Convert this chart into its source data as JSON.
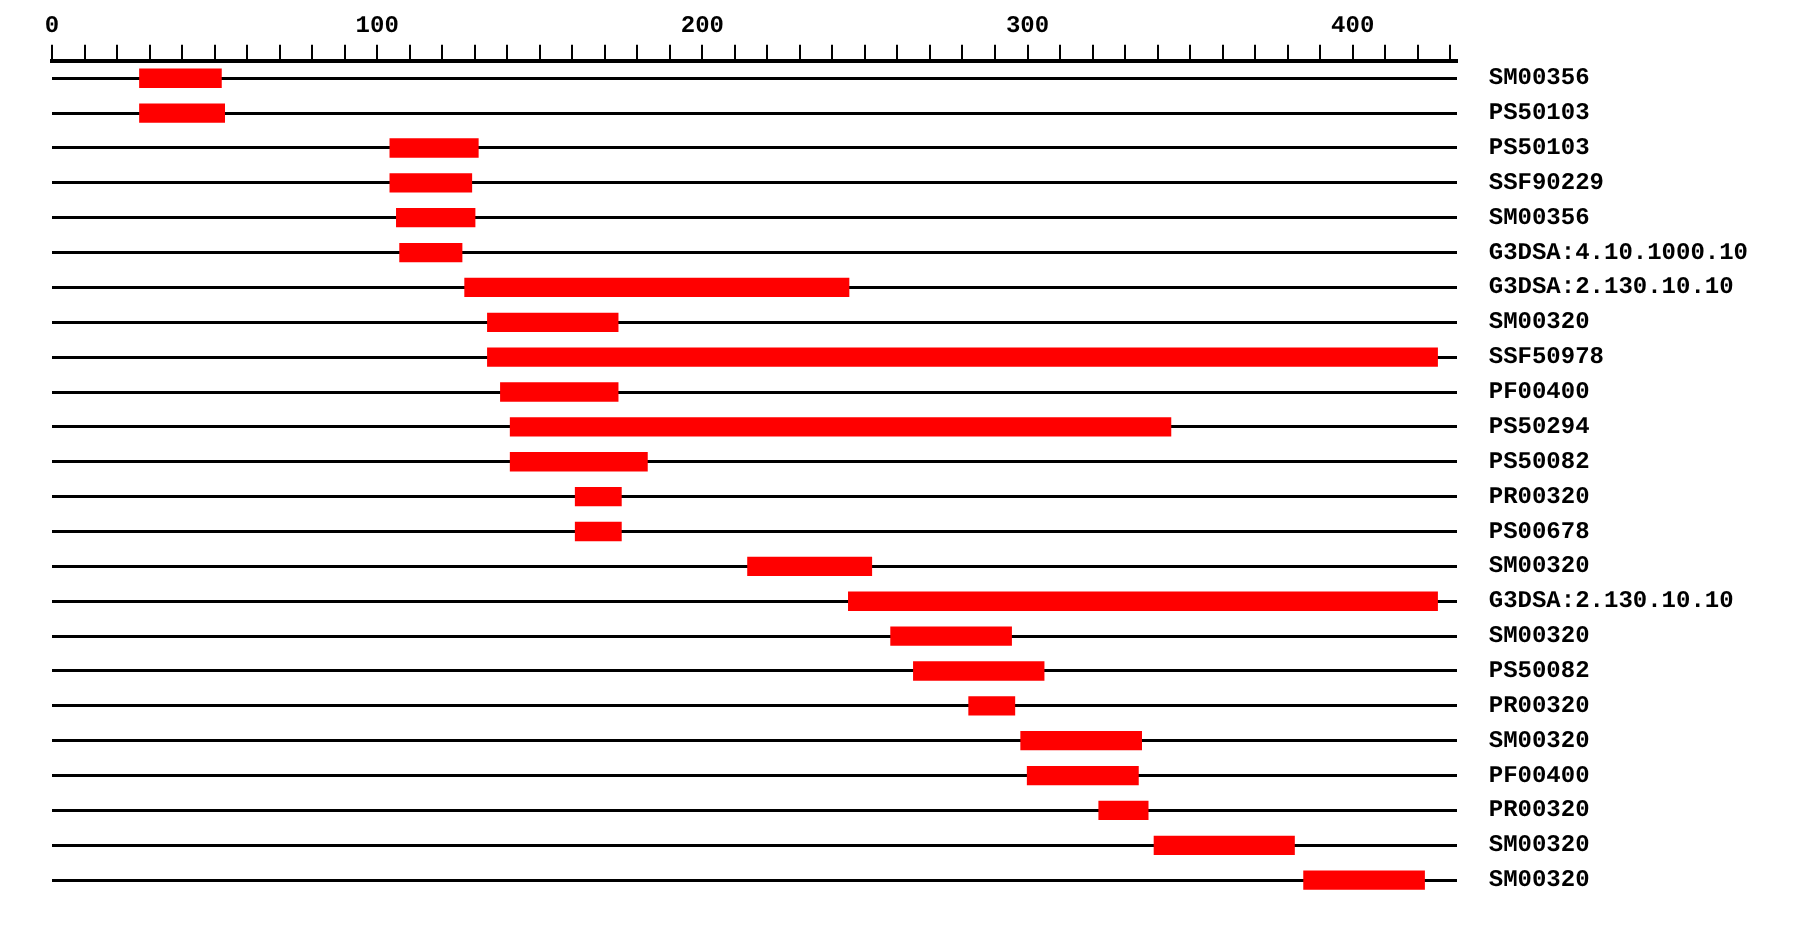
{
  "chart_data": {
    "type": "bar",
    "orientation": "horizontal",
    "categories": [
      "SM00356",
      "PS50103",
      "PS50103",
      "SSF90229",
      "SM00356",
      "G3DSA:4.10.1000.10",
      "G3DSA:2.130.10.10",
      "SM00320",
      "SSF50978",
      "PF00400",
      "PS50294",
      "PS50082",
      "PR00320",
      "PS00678",
      "SM00320",
      "G3DSA:2.130.10.10",
      "SM00320",
      "PS50082",
      "PR00320",
      "SM00320",
      "PF00400",
      "PR00320",
      "SM00320",
      "SM00320"
    ],
    "base": [
      27,
      27,
      104,
      104,
      106,
      107,
      127,
      134,
      134,
      138,
      141,
      141,
      161,
      161,
      214,
      245,
      258,
      265,
      282,
      298,
      300,
      322,
      339,
      385
    ],
    "values": [
      25,
      26,
      27,
      25,
      24,
      19,
      118,
      40,
      292,
      36,
      203,
      42,
      14,
      14,
      38,
      181,
      37,
      40,
      14,
      37,
      34,
      15,
      43,
      37
    ],
    "color": "#ff0000",
    "xlim": [
      0,
      432
    ],
    "xticks": [
      0,
      {
        "value": 10,
        "label": null
      },
      {
        "value": 20,
        "label": null
      },
      {
        "value": 30,
        "label": null
      },
      {
        "value": 40,
        "label": null
      },
      {
        "value": 50,
        "label": null
      },
      {
        "value": 60,
        "label": null
      },
      {
        "value": 70,
        "label": null
      },
      {
        "value": 80,
        "label": null
      },
      {
        "value": 90,
        "label": null
      },
      100,
      {
        "value": 110,
        "label": null
      },
      {
        "value": 120,
        "label": null
      },
      {
        "value": 130,
        "label": null
      },
      {
        "value": 140,
        "label": null
      },
      {
        "value": 150,
        "label": null
      },
      {
        "value": 160,
        "label": null
      },
      {
        "value": 170,
        "label": null
      },
      {
        "value": 180,
        "label": null
      },
      {
        "value": 190,
        "label": null
      },
      200,
      {
        "value": 210,
        "label": null
      },
      {
        "value": 220,
        "label": null
      },
      {
        "value": 230,
        "label": null
      },
      {
        "value": 240,
        "label": null
      },
      {
        "value": 250,
        "label": null
      },
      {
        "value": 260,
        "label": null
      },
      {
        "value": 270,
        "label": null
      },
      {
        "value": 280,
        "label": null
      },
      {
        "value": 290,
        "label": null
      },
      300,
      {
        "value": 310,
        "label": null
      },
      {
        "value": 320,
        "label": null
      },
      {
        "value": 330,
        "label": null
      },
      {
        "value": 340,
        "label": null
      },
      {
        "value": 350,
        "label": null
      },
      {
        "value": 360,
        "label": null
      },
      {
        "value": 370,
        "label": null
      },
      {
        "value": 380,
        "label": null
      },
      {
        "value": 390,
        "label": null
      },
      400,
      {
        "value": 410,
        "label": null
      },
      {
        "value": 420,
        "label": null
      },
      {
        "value": 430,
        "label": null
      }
    ],
    "grid": "y"
  }
}
